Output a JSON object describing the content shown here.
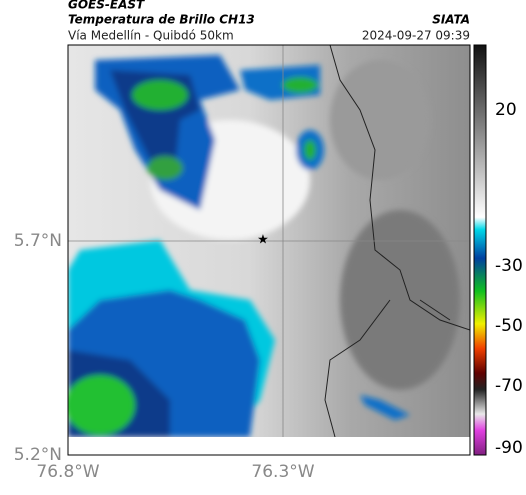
{
  "header": {
    "title": "GOES-EAST",
    "subtitle": "Temperatura de Brillo CH13",
    "source": "SIATA",
    "region": "Vía Medellín - Quibdó 50km",
    "timestamp": "2024-09-27 09:39"
  },
  "map": {
    "lat_labels": [
      "5.7°N",
      "5.2°N"
    ],
    "lon_labels": [
      "76.8°W",
      "76.3°W"
    ]
  },
  "colorbar": {
    "ticks": [
      20,
      -30,
      -50,
      -70,
      -90
    ]
  }
}
